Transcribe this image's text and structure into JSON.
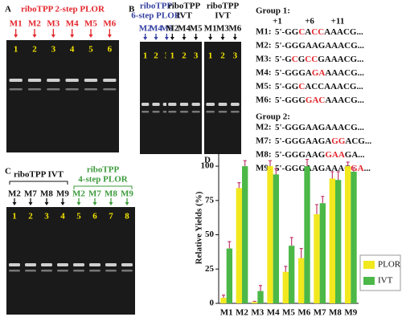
{
  "panels": {
    "A": {
      "label": "A",
      "title": "riboTPP 2-step PLOR",
      "lanes": [
        "M1",
        "M2",
        "M3",
        "M4",
        "M5",
        "M6"
      ],
      "lane_numbers": [
        1,
        2,
        3,
        4,
        5,
        6
      ]
    },
    "B": {
      "label": "B",
      "gels": [
        {
          "title": [
            "riboTPP",
            "6-step PLOR"
          ],
          "lanes": [
            "M2",
            "M4",
            "M5"
          ],
          "lane_numbers": [
            1,
            2,
            3
          ]
        },
        {
          "title": [
            "riboTPP",
            "IVT"
          ],
          "lanes": [
            "M2",
            "M4",
            "M5"
          ],
          "lane_numbers": [
            1,
            2,
            3
          ]
        },
        {
          "title": [
            "riboTPP",
            "IVT"
          ],
          "lanes": [
            "M1",
            "M3",
            "M6"
          ],
          "lane_numbers": [
            1,
            2,
            3
          ]
        }
      ],
      "groups": [
        {
          "title": "Group 1:",
          "positions": [
            "+1",
            "+6",
            "+11"
          ],
          "sequences": [
            {
              "name": "M1:",
              "parts": [
                "5'-GG",
                "C",
                "A",
                "CC",
                "AAACG..."
              ]
            },
            {
              "name": "M2:",
              "parts": [
                "5'-GGGAAGAAACG..."
              ]
            },
            {
              "name": "M3:",
              "parts": [
                "5'-G",
                "C",
                "G",
                "CC",
                "GAAACG..."
              ]
            },
            {
              "name": "M4:",
              "parts": [
                "5'-GGGA",
                "GA",
                "AAACG..."
              ]
            },
            {
              "name": "M5:",
              "parts": [
                "5'-GG",
                "C",
                "ACCAAACG..."
              ]
            },
            {
              "name": "M6:",
              "parts": [
                "5'-GGG",
                "GAC",
                "AAACG..."
              ]
            }
          ]
        },
        {
          "title": "Group 2:",
          "sequences": [
            {
              "name": "M2:",
              "parts": [
                "5'-GGGAAGAAACG..."
              ]
            },
            {
              "name": "M7:",
              "parts": [
                "5'-GGGAAGA",
                "GG",
                "ACG..."
              ]
            },
            {
              "name": "M8:",
              "parts": [
                "5'-GGGAAG",
                "GAA",
                "GA..."
              ]
            },
            {
              "name": "M9:",
              "parts": [
                "5'-GGGAAGAAAC",
                "GA",
                "..."
              ]
            }
          ]
        }
      ]
    },
    "C": {
      "label": "C",
      "groups": [
        {
          "title": [
            "riboTPP IVT"
          ],
          "lanes": [
            "M2",
            "M7",
            "M8",
            "M9"
          ]
        },
        {
          "title": [
            "riboTPP",
            "4-step PLOR"
          ],
          "lanes": [
            "M2",
            "M7",
            "M8",
            "M9"
          ]
        }
      ],
      "lane_numbers": [
        1,
        2,
        3,
        4,
        5,
        6,
        7,
        8
      ]
    },
    "D": {
      "label": "D"
    }
  },
  "chart_data": {
    "type": "bar",
    "y_label": "Relative   Yields (%)",
    "categories": [
      "M1",
      "M2",
      "M3",
      "M4",
      "M5",
      "M6",
      "M7",
      "M8",
      "M9"
    ],
    "series": [
      {
        "name": "PLOR",
        "color": "#f2e81e",
        "error_color": "#c23a6e",
        "values": [
          4,
          84,
          1,
          100,
          23,
          33,
          65,
          91,
          100
        ],
        "errors": [
          2,
          4,
          0.5,
          4,
          4,
          7,
          7,
          5,
          3
        ]
      },
      {
        "name": "IVT",
        "color": "#4cb848",
        "error_color": "#c23a6e",
        "values": [
          40,
          100,
          9,
          94,
          42,
          100,
          73,
          90,
          96
        ],
        "errors": [
          5,
          4,
          4,
          4,
          6,
          5,
          5,
          6,
          3
        ]
      }
    ],
    "ylim": [
      0,
      110
    ],
    "yticks": [
      0,
      25,
      50,
      75,
      100
    ],
    "legend": "right"
  }
}
